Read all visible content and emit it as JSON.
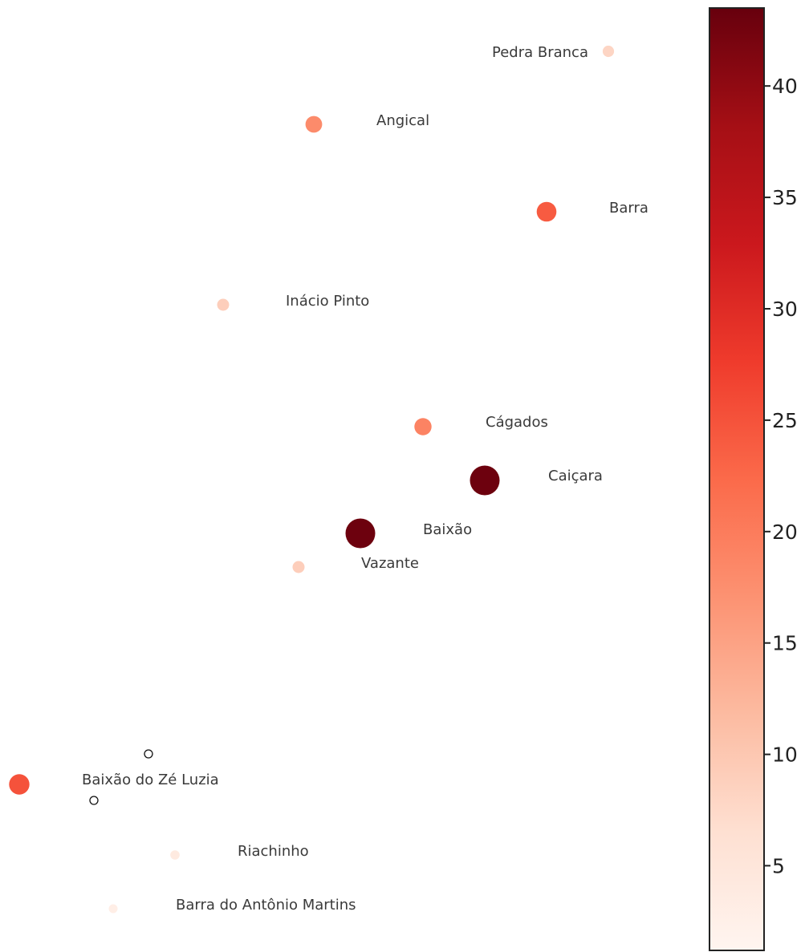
{
  "map": {
    "places": [
      {
        "name": "Pedra Branca",
        "value": 8
      },
      {
        "name": "Angical",
        "value": 18
      },
      {
        "name": "Barra",
        "value": 24
      },
      {
        "name": "Inácio Pinto",
        "value": 9
      },
      {
        "name": "Cágados",
        "value": 19
      },
      {
        "name": "Caiçara",
        "value": 43
      },
      {
        "name": "Baixão",
        "value": 43
      },
      {
        "name": "Vazante",
        "value": 9
      },
      {
        "name": "Baixão do Zé Luzia",
        "value": 25
      },
      {
        "name": "Riachinho",
        "value": 4
      },
      {
        "name": "Barra do Antônio Martins",
        "value": 3
      }
    ],
    "markers": [
      "circle-marker",
      "circle-marker"
    ]
  },
  "colorbar": {
    "min": 1.2,
    "max": 43.5,
    "ticks": [
      5,
      10,
      15,
      20,
      25,
      30,
      35,
      40
    ],
    "colors": [
      "#fff5f0",
      "#fee0d2",
      "#fcbba1",
      "#fc9272",
      "#fb6a4a",
      "#ef3b2c",
      "#cb181d",
      "#a50f15",
      "#67000d"
    ]
  }
}
